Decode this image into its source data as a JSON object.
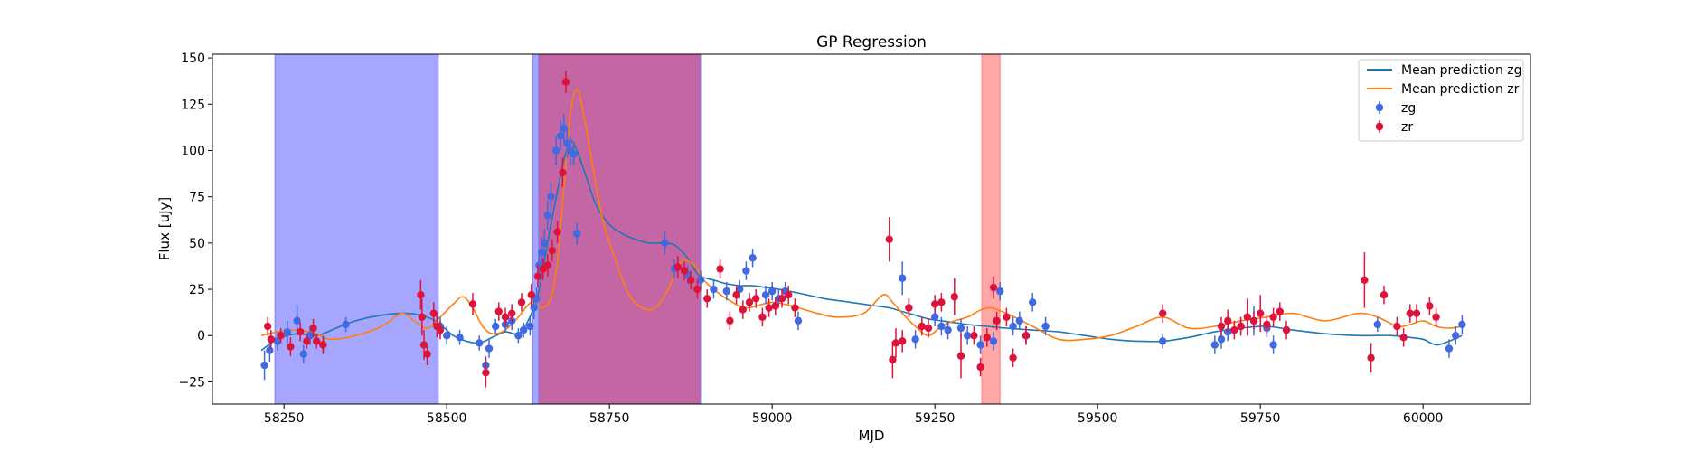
{
  "chart_data": {
    "type": "scatter",
    "title": "GP Regression",
    "xlabel": "MJD",
    "ylabel": "Flux [uJy]",
    "xlim": [
      58140,
      60165
    ],
    "ylim": [
      -37,
      152
    ],
    "x_ticks": [
      58250,
      58500,
      58750,
      59000,
      59250,
      59500,
      59750,
      60000
    ],
    "y_ticks": [
      -25,
      0,
      25,
      50,
      75,
      100,
      125,
      150
    ],
    "grid": false,
    "legend_position": "top-right",
    "shaded_regions": [
      {
        "x0": 58236,
        "x1": 58487,
        "color": "#a6a6ff",
        "edge": "#8080ff"
      },
      {
        "x0": 58632,
        "x1": 58641,
        "color": "#a6a6ff",
        "edge": "#8080ff"
      },
      {
        "x0": 58641,
        "x1": 58890,
        "color": "#c466a3",
        "edge": "#8080ff"
      },
      {
        "x0": 59322,
        "x1": 59350,
        "color": "#ffa6a6",
        "edge": "#ff8080"
      }
    ],
    "series": [
      {
        "name": "Mean prediction zg",
        "kind": "line",
        "color": "#1f77b4",
        "x": [
          58215,
          58240,
          58270,
          58300,
          58330,
          58360,
          58400,
          58440,
          58470,
          58490,
          58510,
          58530,
          58550,
          58570,
          58590,
          58610,
          58625,
          58640,
          58650,
          58660,
          58670,
          58680,
          58690,
          58700,
          58715,
          58730,
          58750,
          58770,
          58790,
          58810,
          58830,
          58850,
          58870,
          58880,
          58890,
          58910,
          58930,
          58950,
          58970,
          58990,
          59010,
          59040,
          59080,
          59120,
          59160,
          59180,
          59200,
          59220,
          59240,
          59260,
          59280,
          59300,
          59330,
          59360,
          59400,
          59440,
          59480,
          59520,
          59560,
          59600,
          59640,
          59680,
          59720,
          59760,
          59800,
          59850,
          59900,
          59950,
          59980,
          60000,
          60020,
          60040,
          60060
        ],
        "y": [
          -8,
          -2,
          1,
          0,
          4,
          8,
          11,
          12,
          10,
          6,
          0,
          -3,
          -4,
          -1,
          2,
          1,
          8,
          22,
          40,
          60,
          78,
          95,
          105,
          100,
          85,
          70,
          60,
          55,
          52,
          50,
          50,
          49,
          42,
          36,
          32,
          30,
          28,
          27,
          27,
          26,
          25,
          23,
          20,
          18,
          16,
          15,
          13,
          11,
          9,
          8,
          7,
          6,
          5,
          4,
          3,
          2,
          0,
          -2,
          -3,
          -3,
          -1,
          2,
          4,
          5,
          3,
          1,
          0,
          0,
          -1,
          -2,
          -5,
          -3,
          0
        ]
      },
      {
        "name": "Mean prediction zr",
        "kind": "line",
        "color": "#ff7f0e",
        "x": [
          58215,
          58240,
          58270,
          58300,
          58320,
          58360,
          58400,
          58430,
          58450,
          58470,
          58490,
          58510,
          58525,
          58540,
          58555,
          58570,
          58590,
          58610,
          58630,
          58645,
          58660,
          58670,
          58680,
          58690,
          58700,
          58710,
          58725,
          58740,
          58760,
          58780,
          58800,
          58820,
          58840,
          58860,
          58880,
          58895,
          58910,
          58930,
          58960,
          59000,
          59040,
          59070,
          59100,
          59140,
          59170,
          59185,
          59200,
          59220,
          59240,
          59260,
          59280,
          59300,
          59330,
          59360,
          59400,
          59440,
          59480,
          59520,
          59560,
          59600,
          59640,
          59680,
          59720,
          59760,
          59800,
          59850,
          59900,
          59930,
          59960,
          59980,
          60000,
          60020,
          60040,
          60060
        ],
        "y": [
          0,
          2,
          3,
          1,
          -2,
          0,
          5,
          12,
          8,
          4,
          10,
          17,
          21,
          15,
          5,
          1,
          3,
          10,
          18,
          15,
          20,
          40,
          80,
          120,
          133,
          120,
          90,
          62,
          40,
          22,
          15,
          15,
          25,
          40,
          38,
          30,
          25,
          20,
          15,
          18,
          15,
          12,
          10,
          12,
          22,
          18,
          12,
          5,
          0,
          5,
          8,
          10,
          15,
          12,
          5,
          -2,
          -2,
          0,
          5,
          10,
          4,
          5,
          8,
          10,
          12,
          8,
          12,
          10,
          5,
          6,
          8,
          5,
          4,
          5
        ]
      },
      {
        "name": "zg",
        "kind": "errorbar",
        "color": "#4169e1",
        "x": [
          58220,
          58228,
          58240,
          58255,
          58270,
          58280,
          58290,
          58310,
          58345,
          58490,
          58500,
          58520,
          58550,
          58560,
          58565,
          58575,
          58590,
          58600,
          58610,
          58618,
          58628,
          58634,
          58638,
          58642,
          58646,
          58650,
          58655,
          58660,
          58668,
          58675,
          58680,
          58685,
          58690,
          58695,
          58700,
          58835,
          58850,
          58870,
          58890,
          58910,
          58930,
          58950,
          58960,
          58970,
          58990,
          59000,
          59010,
          59020,
          59040,
          59200,
          59210,
          59220,
          59250,
          59260,
          59270,
          59290,
          59300,
          59320,
          59340,
          59350,
          59370,
          59380,
          59390,
          59400,
          59420,
          59600,
          59680,
          59690,
          59700,
          59720,
          59740,
          59760,
          59770,
          59930,
          60040,
          60050,
          60060
        ],
        "y": [
          -16,
          -8,
          -3,
          2,
          8,
          -10,
          0,
          -5,
          6,
          5,
          0,
          -1,
          -4,
          -16,
          -7,
          5,
          6,
          8,
          0,
          3,
          5,
          15,
          20,
          38,
          45,
          50,
          65,
          75,
          100,
          108,
          112,
          104,
          100,
          98,
          55,
          50,
          36,
          33,
          30,
          25,
          24,
          25,
          35,
          42,
          22,
          24,
          20,
          24,
          8,
          31,
          15,
          -2,
          10,
          5,
          3,
          4,
          0,
          -5,
          -3,
          24,
          5,
          8,
          0,
          18,
          5,
          -3,
          -5,
          -2,
          2,
          5,
          8,
          4,
          -5,
          6,
          -7,
          0,
          6
        ],
        "err": [
          8,
          6,
          5,
          6,
          8,
          5,
          5,
          4,
          4,
          5,
          5,
          4,
          4,
          5,
          5,
          4,
          4,
          5,
          4,
          4,
          5,
          6,
          6,
          8,
          8,
          8,
          8,
          8,
          8,
          8,
          8,
          8,
          8,
          6,
          6,
          6,
          5,
          5,
          5,
          5,
          5,
          5,
          5,
          5,
          5,
          5,
          5,
          5,
          5,
          9,
          5,
          5,
          5,
          5,
          5,
          5,
          5,
          5,
          5,
          5,
          5,
          5,
          5,
          5,
          5,
          4,
          5,
          5,
          5,
          5,
          8,
          5,
          5,
          4,
          5,
          5,
          5
        ]
      },
      {
        "name": "zr",
        "kind": "errorbar",
        "color": "#dc143c",
        "x": [
          58225,
          58230,
          58245,
          58260,
          58275,
          58285,
          58295,
          58300,
          58310,
          58460,
          58462,
          58465,
          58470,
          58480,
          58485,
          58490,
          58540,
          58560,
          58580,
          58590,
          58600,
          58615,
          58630,
          58640,
          58648,
          58655,
          58662,
          58670,
          58678,
          58683,
          58855,
          58865,
          58875,
          58885,
          58900,
          58920,
          58935,
          58945,
          58955,
          58965,
          58975,
          58985,
          58995,
          59005,
          59015,
          59025,
          59035,
          59180,
          59185,
          59190,
          59200,
          59210,
          59230,
          59240,
          59250,
          59260,
          59280,
          59290,
          59310,
          59320,
          59330,
          59340,
          59345,
          59360,
          59370,
          59390,
          59600,
          59690,
          59700,
          59710,
          59720,
          59730,
          59740,
          59750,
          59760,
          59770,
          59780,
          59790,
          59910,
          59920,
          59940,
          59960,
          59970,
          59980,
          59990,
          60010,
          60020
        ],
        "y": [
          5,
          -2,
          0,
          -6,
          2,
          -3,
          4,
          -3,
          -5,
          22,
          10,
          -5,
          -10,
          12,
          5,
          3,
          17,
          -20,
          13,
          10,
          12,
          18,
          22,
          32,
          36,
          38,
          46,
          56,
          88,
          137,
          37,
          35,
          30,
          25,
          20,
          36,
          8,
          22,
          14,
          18,
          20,
          10,
          15,
          16,
          20,
          22,
          15,
          52,
          -13,
          -4,
          -3,
          15,
          5,
          4,
          17,
          18,
          21,
          -11,
          0,
          -17,
          -1,
          26,
          8,
          10,
          -12,
          0,
          12,
          5,
          8,
          3,
          5,
          10,
          8,
          12,
          6,
          10,
          13,
          3,
          30,
          -12,
          22,
          5,
          -1,
          12,
          12,
          16,
          10
        ],
        "err": [
          5,
          5,
          4,
          5,
          5,
          4,
          5,
          4,
          5,
          8,
          10,
          8,
          6,
          6,
          6,
          5,
          6,
          8,
          5,
          5,
          5,
          5,
          6,
          6,
          6,
          6,
          6,
          6,
          8,
          6,
          6,
          5,
          5,
          5,
          5,
          5,
          5,
          5,
          5,
          5,
          5,
          5,
          5,
          5,
          5,
          5,
          5,
          12,
          10,
          8,
          6,
          5,
          5,
          5,
          5,
          5,
          10,
          12,
          5,
          5,
          5,
          6,
          5,
          5,
          5,
          5,
          5,
          5,
          6,
          5,
          5,
          10,
          5,
          10,
          5,
          5,
          5,
          5,
          15,
          8,
          5,
          5,
          5,
          5,
          5,
          5,
          5
        ]
      }
    ]
  }
}
